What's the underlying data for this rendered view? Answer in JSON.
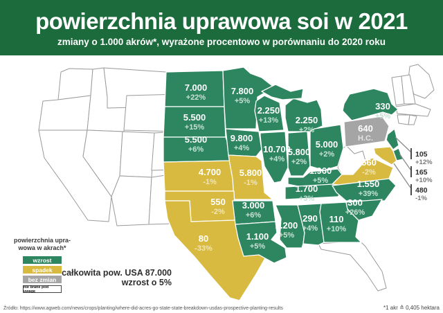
{
  "header": {
    "title": "powierzchnia uprawowa soi w 2021",
    "subtitle": "zmiany o 1.000 akrów*, wyrażone procentowo w porównaniu do 2020 roku"
  },
  "colors": {
    "header_bg": "#1c6b3d",
    "increase": "#2e8661",
    "decrease": "#d8ba40",
    "no_change": "#a5a5a5",
    "excluded": "#ffffff"
  },
  "legend": {
    "title_line1": "powierzchnia upra-",
    "title_line2": "wowa w akrach*",
    "items": [
      {
        "key": "increase",
        "label": "wzrost"
      },
      {
        "key": "decrease",
        "label": "spadek"
      },
      {
        "key": "no_change",
        "label": "bez zmian"
      },
      {
        "key": "excluded",
        "label": "nie brane pod uwagę"
      }
    ]
  },
  "summary": {
    "line1": "całkowita pow. USA 87.000",
    "line2": "wzrost o 5%"
  },
  "footer": {
    "source": "Źródło: https://www.agweb.com/news/crops/planting/where-did-acres-go-state-state-breakdown-usdas-prospective-planting-results",
    "note": "*1 akr ≙ 0,405 hektara"
  },
  "chart_data": {
    "type": "choropleth-map",
    "region": "USA – stany",
    "unit": "1.000 akrów",
    "legend_categories": {
      "increase": "wzrost",
      "decrease": "spadek",
      "no_change": "bez zmian",
      "excluded": "nie brane pod uwagę"
    },
    "total": {
      "label": "całkowita pow. USA",
      "value": "87.000",
      "change": "wzrost o 5%"
    },
    "states": [
      {
        "id": "ND",
        "value": "7.000",
        "change": "+22%",
        "category": "increase"
      },
      {
        "id": "SD",
        "value": "5.500",
        "change": "+15%",
        "category": "increase"
      },
      {
        "id": "NE",
        "value": "5.500",
        "change": "+6%",
        "category": "increase"
      },
      {
        "id": "MN",
        "value": "7.800",
        "change": "+5%",
        "category": "increase"
      },
      {
        "id": "WI",
        "value": "2.250",
        "change": "+13%",
        "category": "increase"
      },
      {
        "id": "IA",
        "value": "9.800",
        "change": "+4%",
        "category": "increase"
      },
      {
        "id": "IL",
        "value": "10.700",
        "change": "+4%",
        "category": "increase"
      },
      {
        "id": "MI",
        "value": "2.250",
        "change": "+2%",
        "category": "increase"
      },
      {
        "id": "IN",
        "value": "5.800",
        "change": "+2%",
        "category": "increase"
      },
      {
        "id": "OH",
        "value": "5.000",
        "change": "+2%",
        "category": "increase"
      },
      {
        "id": "NY",
        "value": "330",
        "change": "+5%",
        "category": "increase"
      },
      {
        "id": "PA",
        "value": "640",
        "change": "H.C.",
        "category": "no_change"
      },
      {
        "id": "KS",
        "value": "4.700",
        "change": "-1%",
        "category": "decrease"
      },
      {
        "id": "MO",
        "value": "5.800",
        "change": "-1%",
        "category": "decrease"
      },
      {
        "id": "OK",
        "value": "550",
        "change": "-2%",
        "category": "decrease"
      },
      {
        "id": "TX",
        "value": "80",
        "change": "-33%",
        "category": "decrease"
      },
      {
        "id": "KY",
        "value": "1.960",
        "change": "+5%",
        "category": "increase"
      },
      {
        "id": "TN",
        "value": "1.700",
        "change": "+3%",
        "category": "increase"
      },
      {
        "id": "AR",
        "value": "3.000",
        "change": "+6%",
        "category": "increase"
      },
      {
        "id": "LA",
        "value": "1.100",
        "change": "+5%",
        "category": "increase"
      },
      {
        "id": "MS",
        "value": "2.200",
        "change": "+5%",
        "category": "increase"
      },
      {
        "id": "AL",
        "value": "290",
        "change": "+4%",
        "category": "increase"
      },
      {
        "id": "GA",
        "value": "110",
        "change": "+10%",
        "category": "increase"
      },
      {
        "id": "VA",
        "value": "560",
        "change": "-2%",
        "category": "decrease"
      },
      {
        "id": "NC",
        "value": "1.550",
        "change": "+39%",
        "category": "increase"
      },
      {
        "id": "SC",
        "value": "300",
        "change": "+26%",
        "category": "increase"
      },
      {
        "id": "WA",
        "category": "excluded"
      },
      {
        "id": "OR",
        "category": "excluded"
      },
      {
        "id": "CA",
        "category": "excluded"
      },
      {
        "id": "ID",
        "category": "excluded"
      },
      {
        "id": "NV",
        "category": "excluded"
      },
      {
        "id": "MT",
        "category": "excluded"
      },
      {
        "id": "WY",
        "category": "excluded"
      },
      {
        "id": "UT",
        "category": "excluded"
      },
      {
        "id": "CO",
        "category": "excluded"
      },
      {
        "id": "AZ",
        "category": "excluded"
      },
      {
        "id": "NM",
        "category": "excluded"
      },
      {
        "id": "WV",
        "category": "excluded"
      },
      {
        "id": "FL",
        "category": "excluded"
      },
      {
        "id": "ME",
        "category": "excluded"
      },
      {
        "id": "VT",
        "category": "excluded"
      },
      {
        "id": "NH",
        "category": "excluded"
      },
      {
        "id": "MA",
        "category": "excluded"
      },
      {
        "id": "CT",
        "category": "excluded"
      },
      {
        "id": "RI",
        "category": "excluded"
      }
    ],
    "callouts": [
      {
        "id": "NJ",
        "value": "105",
        "change": "+12%",
        "category": "increase"
      },
      {
        "id": "DE",
        "value": "165",
        "change": "+10%",
        "category": "increase"
      },
      {
        "id": "MD",
        "value": "480",
        "change": "-1%",
        "category": "decrease"
      }
    ]
  }
}
